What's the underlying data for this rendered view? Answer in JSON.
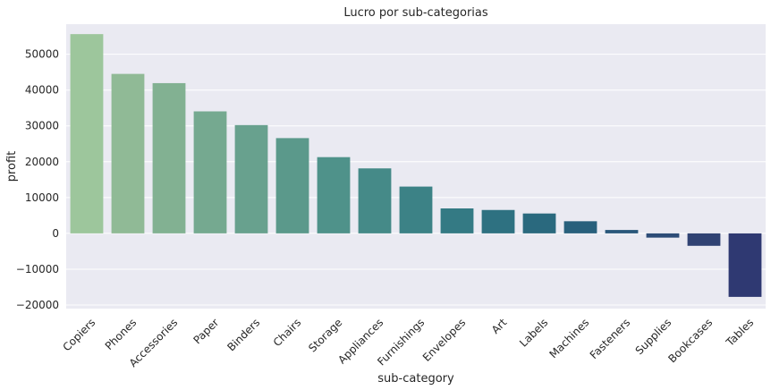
{
  "chart_data": {
    "type": "bar",
    "title": "Lucro por sub-categorias",
    "xlabel": "sub-category",
    "ylabel": "profit",
    "categories": [
      "Copiers",
      "Phones",
      "Accessories",
      "Paper",
      "Binders",
      "Chairs",
      "Storage",
      "Appliances",
      "Furnishings",
      "Envelopes",
      "Art",
      "Labels",
      "Machines",
      "Fasteners",
      "Supplies",
      "Bookcases",
      "Tables"
    ],
    "values": [
      55618,
      44516,
      41937,
      34054,
      30222,
      26590,
      21279,
      18138,
      13059,
      6964,
      6528,
      5546,
      3385,
      950,
      -1189,
      -3473,
      -17725
    ],
    "yticks": [
      -20000,
      -10000,
      0,
      10000,
      20000,
      30000,
      40000,
      50000
    ],
    "ytick_labels": [
      "−20000",
      "−10000",
      "0",
      "10000",
      "20000",
      "30000",
      "40000",
      "50000"
    ],
    "ylim": [
      -21000,
      58400
    ],
    "grid": true,
    "palette": "crest",
    "colors": [
      "#9dc69c",
      "#90ba96",
      "#82b192",
      "#75a990",
      "#68a18e",
      "#5b998b",
      "#4f928a",
      "#458a88",
      "#3c8286",
      "#347a84",
      "#2e7181",
      "#2a697e",
      "#28607c",
      "#29577a",
      "#2d4c77",
      "#304273",
      "#2f3972"
    ],
    "background": "#eaeaf2"
  }
}
